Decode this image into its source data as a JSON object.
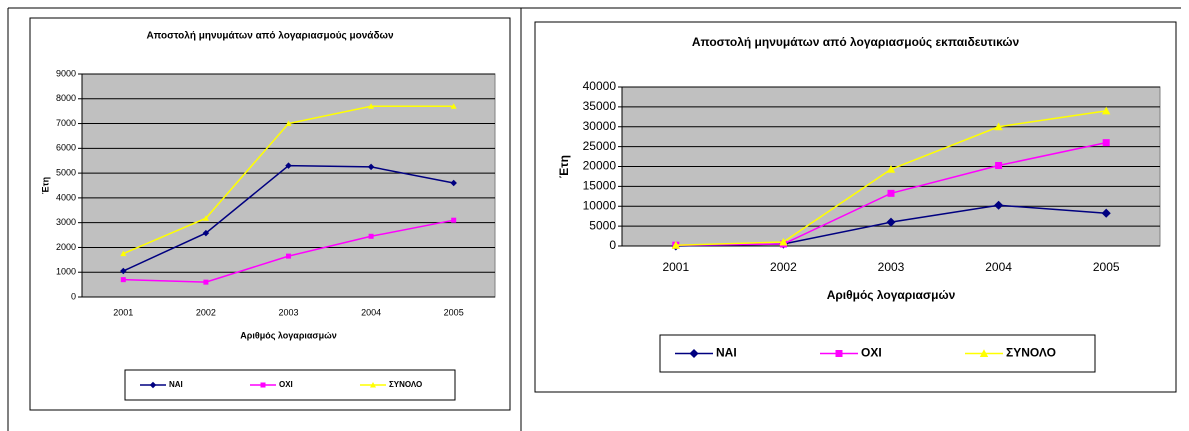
{
  "chart_data": [
    {
      "type": "line",
      "title": "Αποστολή μηνυμάτων από λογαριασμούς μονάδων",
      "x_label": "Αριθμός λογαριασμών",
      "y_label": "Έτη",
      "categories": [
        "2001",
        "2002",
        "2003",
        "2004",
        "2005"
      ],
      "series": [
        {
          "name": "ΝΑΙ",
          "color": "#000080",
          "marker": "diamond",
          "values": [
            1050,
            2580,
            5300,
            5250,
            4600
          ]
        },
        {
          "name": "ΟΧΙ",
          "color": "#ff00ff",
          "marker": "square",
          "values": [
            700,
            600,
            1650,
            2450,
            3100
          ]
        },
        {
          "name": "ΣΥΝΟΛΟ",
          "color": "#ffff00",
          "marker": "triangle",
          "values": [
            1750,
            3180,
            7000,
            7700,
            7700
          ]
        }
      ],
      "ylim": [
        0,
        9000
      ],
      "yticks": [
        0,
        1000,
        2000,
        3000,
        4000,
        5000,
        6000,
        7000,
        8000,
        9000
      ],
      "grid": true,
      "legend": "bottom"
    },
    {
      "type": "line",
      "title": "Αποστολή μηνυμάτων από λογαριασμούς εκπαιδευτικών",
      "x_label": "Αριθμός λογαριασμών",
      "y_label": "Έτη",
      "categories": [
        "2001",
        "2002",
        "2003",
        "2004",
        "2005"
      ],
      "series": [
        {
          "name": "ΝΑΙ",
          "color": "#000080",
          "marker": "diamond",
          "values": [
            0,
            500,
            6000,
            10250,
            8250
          ]
        },
        {
          "name": "ΟΧΙ",
          "color": "#ff00ff",
          "marker": "square",
          "values": [
            200,
            500,
            13250,
            20250,
            26000
          ]
        },
        {
          "name": "ΣΥΝΟΛΟ",
          "color": "#ffff00",
          "marker": "triangle",
          "values": [
            200,
            1000,
            19300,
            30000,
            34000
          ]
        }
      ],
      "ylim": [
        0,
        40000
      ],
      "yticks": [
        0,
        5000,
        10000,
        15000,
        20000,
        25000,
        30000,
        35000,
        40000
      ],
      "grid": true,
      "legend": "bottom"
    }
  ]
}
